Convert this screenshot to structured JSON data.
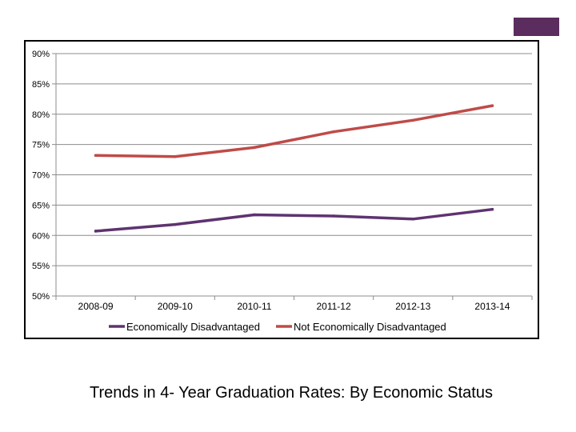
{
  "accent_color": "#5b2c5e",
  "caption": "Trends in 4- Year Graduation Rates:  By Economic Status",
  "chart_data": {
    "type": "line",
    "title": "",
    "xlabel": "",
    "ylabel": "",
    "categories": [
      "2008-09",
      "2009-10",
      "2010-11",
      "2011-12",
      "2012-13",
      "2013-14"
    ],
    "ylim": [
      50,
      90
    ],
    "y_ticks": [
      50,
      55,
      60,
      65,
      70,
      75,
      80,
      85,
      90
    ],
    "y_tick_labels": [
      "50%",
      "55%",
      "60%",
      "65%",
      "70%",
      "75%",
      "80%",
      "85%",
      "90%"
    ],
    "grid": true,
    "legend_position": "bottom",
    "series": [
      {
        "name": "Economically Disadvantaged",
        "color": "#5e3370",
        "values": [
          60.7,
          61.8,
          63.4,
          63.2,
          62.7,
          64.3
        ]
      },
      {
        "name": "Not Economically Disadvantaged",
        "color": "#bf4b48",
        "values": [
          73.2,
          73.0,
          74.5,
          77.1,
          79.0,
          81.4
        ]
      }
    ]
  }
}
